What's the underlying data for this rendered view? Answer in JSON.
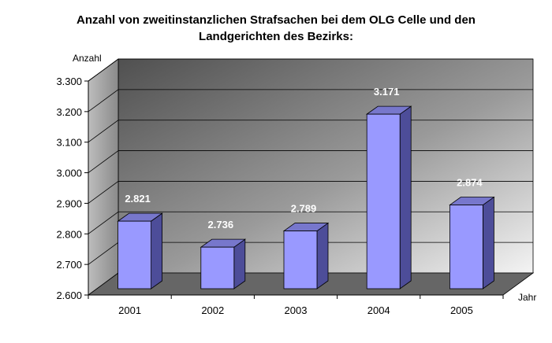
{
  "chart_data": {
    "type": "bar",
    "title_lines": [
      "Anzahl von zweitinstanzlichen Strafsachen bei dem OLG Celle und den",
      "Landgerichten des Bezirks:"
    ],
    "xlabel": "Jahr",
    "ylabel": "Anzahl",
    "categories": [
      "2001",
      "2002",
      "2003",
      "2004",
      "2005"
    ],
    "values": [
      2821,
      2736,
      2789,
      3171,
      2874
    ],
    "data_labels": [
      "2.821",
      "2.736",
      "2.789",
      "3.171",
      "2.874"
    ],
    "ylim": [
      2600,
      3300
    ],
    "yticks": [
      2600,
      2700,
      2800,
      2900,
      3000,
      3100,
      3200,
      3300
    ],
    "ytick_labels": [
      "2.600",
      "2.700",
      "2.800",
      "2.900",
      "3.000",
      "3.100",
      "3.200",
      "3.300"
    ],
    "grid": true,
    "legend": "none",
    "style": "3d",
    "colors": {
      "bar_front": "#9999ff",
      "bar_side": "#4d4d99",
      "bar_top": "#7777cc",
      "bar_edge": "#000000",
      "wall_light": "#f2f2f2",
      "wall_dark": "#5a5a5a",
      "floor": "#666666",
      "gridline": "#000000"
    }
  }
}
